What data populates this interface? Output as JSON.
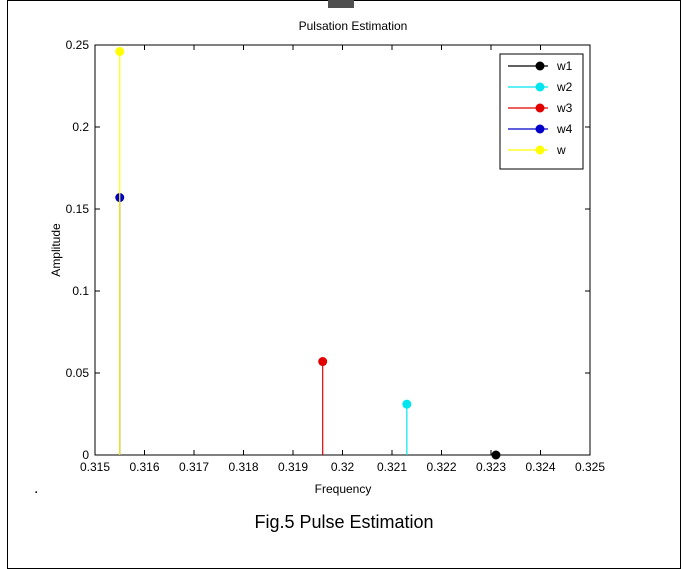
{
  "figure": {
    "caption": "Fig.5 Pulse Estimation",
    "stray_mark": "."
  },
  "chart_data": {
    "type": "stem",
    "title": "Pulsation Estimation",
    "xlabel": "Frequency",
    "ylabel": "Amplitude",
    "xlim": [
      0.315,
      0.325
    ],
    "ylim": [
      0,
      0.25
    ],
    "x_ticks": [
      "0.315",
      "0.316",
      "0.317",
      "0.318",
      "0.319",
      "0.32",
      "0.321",
      "0.322",
      "0.323",
      "0.324",
      "0.325"
    ],
    "y_ticks": [
      "0",
      "0.05",
      "0.1",
      "0.15",
      "0.2",
      "0.25"
    ],
    "x_tick_values": [
      0.315,
      0.316,
      0.317,
      0.318,
      0.319,
      0.32,
      0.321,
      0.322,
      0.323,
      0.324,
      0.325
    ],
    "y_tick_values": [
      0,
      0.05,
      0.1,
      0.15,
      0.2,
      0.25
    ],
    "grid": false,
    "legend_position": "top-right",
    "series": [
      {
        "name": "w1",
        "color": "#000000",
        "x": 0.3231,
        "y": 0.0
      },
      {
        "name": "w2",
        "color": "#00e5ee",
        "x": 0.3213,
        "y": 0.031
      },
      {
        "name": "w3",
        "color": "#e00000",
        "x": 0.3196,
        "y": 0.057
      },
      {
        "name": "w4",
        "color": "#0000c8",
        "x": 0.3155,
        "y": 0.157
      },
      {
        "name": "w",
        "color": "#ffff00",
        "x": 0.3155,
        "y": 0.246
      }
    ]
  }
}
